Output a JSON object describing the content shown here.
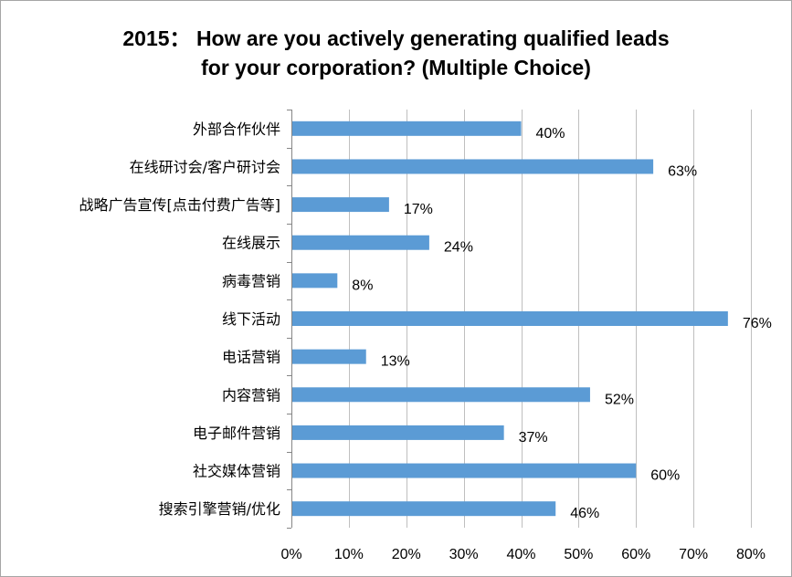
{
  "chart_data": {
    "type": "bar",
    "orientation": "horizontal",
    "title_line1": "2015： How are you actively generating qualified leads",
    "title_line2": "for your corporation? (Multiple Choice)",
    "categories": [
      "外部合作伙伴",
      "在线研讨会/客户研讨会",
      "战略广告宣传[点击付费广告等]",
      "在线展示",
      "病毒营销",
      "线下活动",
      "电话营销",
      "内容营销",
      "电子邮件营销",
      "社交媒体营销",
      "搜索引擎营销/优化"
    ],
    "values": [
      40,
      63,
      17,
      24,
      8,
      76,
      13,
      52,
      37,
      60,
      46
    ],
    "value_labels": [
      "40%",
      "63%",
      "17%",
      "24%",
      "8%",
      "76%",
      "13%",
      "52%",
      "37%",
      "60%",
      "46%"
    ],
    "xlim": [
      0,
      80
    ],
    "x_ticks": [
      0,
      10,
      20,
      30,
      40,
      50,
      60,
      70,
      80
    ],
    "x_tick_labels": [
      "0%",
      "10%",
      "20%",
      "30%",
      "40%",
      "50%",
      "60%",
      "70%",
      "80%"
    ],
    "grid": "vertical major gridlines",
    "bar_color": "#5b9bd5",
    "grid_color": "#bfbfbf"
  }
}
